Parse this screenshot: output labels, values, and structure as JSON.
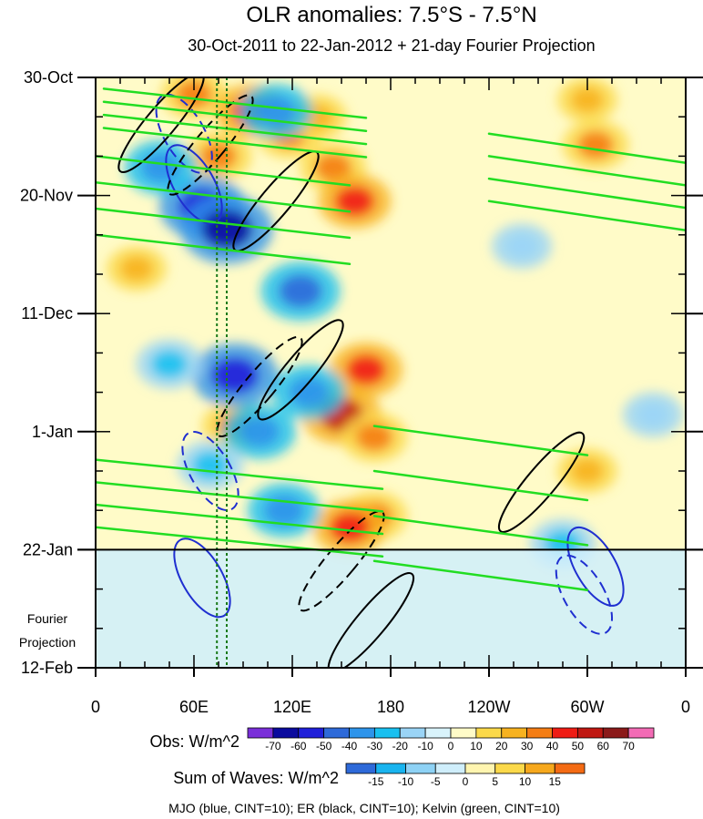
{
  "chart_data": {
    "type": "heatmap",
    "title": "OLR anomalies: 7.5°S - 7.5°N",
    "subtitle": "30-Oct-2011 to 22-Jan-2012 + 21-day Fourier Projection",
    "x_tick_labels": [
      "0",
      "60E",
      "120E",
      "180",
      "120W",
      "60W",
      "0"
    ],
    "x_tick_lon": [
      0,
      60,
      120,
      180,
      240,
      300,
      360
    ],
    "y_tick_labels": [
      "30-Oct",
      "20-Nov",
      "11-Dec",
      "1-Jan",
      "22-Jan",
      "12-Feb"
    ],
    "y_tick_days": [
      0,
      21,
      42,
      63,
      84,
      105
    ],
    "projection_start_day": 84,
    "projection_label": [
      "Fourier",
      "Projection"
    ],
    "vertical_reference_lines_lon": [
      74,
      80
    ],
    "obs_colorbar": {
      "label": "Obs: W/m^2",
      "levels": [
        "-70",
        "-60",
        "-50",
        "-40",
        "-30",
        "-20",
        "-10",
        "0",
        "10",
        "20",
        "30",
        "40",
        "50",
        "60",
        "70"
      ],
      "colors": [
        "#7a2fd9",
        "#0a0a9e",
        "#1f1fd9",
        "#2e6ad9",
        "#2e94ea",
        "#19c0f0",
        "#9ad4f6",
        "#d9f3fb",
        "#fffbc8",
        "#fbd94a",
        "#f7b21f",
        "#f47d14",
        "#ef1c14",
        "#c01812",
        "#8b1a1a",
        "#f26bb5"
      ]
    },
    "waves_colorbar": {
      "label": "Sum of Waves: W/m^2",
      "levels": [
        "-15",
        "-10",
        "-5",
        "0",
        "5",
        "10",
        "15"
      ],
      "colors": [
        "#2e6ad9",
        "#19b4ef",
        "#8ed2f5",
        "#cfeefb",
        "#fff5b0",
        "#fbd94a",
        "#f6a81d",
        "#f46b14"
      ]
    },
    "contour_legend": "MJO (blue, CINT=10); ER (black, CINT=10); Kelvin (green, CINT=10)",
    "series": [
      {
        "name": "Warm (positive) OLR anomaly centers",
        "points": [
          {
            "lon": 60,
            "day": 3,
            "value": 30
          },
          {
            "lon": 95,
            "day": 6,
            "value": 40
          },
          {
            "lon": 75,
            "day": 14,
            "value": 30
          },
          {
            "lon": 118,
            "day": 10,
            "value": 30
          },
          {
            "lon": 135,
            "day": 7,
            "value": 20
          },
          {
            "lon": 145,
            "day": 16,
            "value": 30
          },
          {
            "lon": 158,
            "day": 22,
            "value": 40
          },
          {
            "lon": 300,
            "day": 4,
            "value": 20
          },
          {
            "lon": 305,
            "day": 12,
            "value": 30
          },
          {
            "lon": 165,
            "day": 52,
            "value": 40
          },
          {
            "lon": 150,
            "day": 60,
            "value": 50
          },
          {
            "lon": 170,
            "day": 64,
            "value": 30
          },
          {
            "lon": 85,
            "day": 62,
            "value": 30
          },
          {
            "lon": 25,
            "day": 34,
            "value": 20
          },
          {
            "lon": 170,
            "day": 78,
            "value": 30
          },
          {
            "lon": 300,
            "day": 70,
            "value": 20
          },
          {
            "lon": 155,
            "day": 80,
            "value": 40
          }
        ]
      },
      {
        "name": "Cold (negative) OLR anomaly centers",
        "points": [
          {
            "lon": 65,
            "day": 23,
            "value": -60
          },
          {
            "lon": 80,
            "day": 27,
            "value": -70
          },
          {
            "lon": 40,
            "day": 16,
            "value": -40
          },
          {
            "lon": 110,
            "day": 6,
            "value": -40
          },
          {
            "lon": 125,
            "day": 38,
            "value": -50
          },
          {
            "lon": 85,
            "day": 53,
            "value": -60
          },
          {
            "lon": 100,
            "day": 63,
            "value": -40
          },
          {
            "lon": 130,
            "day": 56,
            "value": -40
          },
          {
            "lon": 70,
            "day": 69,
            "value": -30
          },
          {
            "lon": 45,
            "day": 51,
            "value": -30
          },
          {
            "lon": 115,
            "day": 77,
            "value": -40
          },
          {
            "lon": 260,
            "day": 30,
            "value": -20
          },
          {
            "lon": 340,
            "day": 60,
            "value": -20
          },
          {
            "lon": 285,
            "day": 83,
            "value": -30
          }
        ]
      },
      {
        "name": "MJO contours (blue)",
        "contours": [
          {
            "lon": 60,
            "day": 19,
            "sign": "negative"
          },
          {
            "lon": 54,
            "day": 10,
            "sign": "positive"
          },
          {
            "lon": 70,
            "day": 70,
            "sign": "positive"
          },
          {
            "lon": 65,
            "day": 89,
            "sign": "negative"
          },
          {
            "lon": 298,
            "day": 92,
            "sign": "positive"
          },
          {
            "lon": 305,
            "day": 87,
            "sign": "negative"
          }
        ]
      },
      {
        "name": "ER contours (black)",
        "contours": [
          {
            "lon": 40,
            "day": 8,
            "sign": "positive"
          },
          {
            "lon": 70,
            "day": 12,
            "sign": "negative"
          },
          {
            "lon": 110,
            "day": 22,
            "sign": "positive"
          },
          {
            "lon": 125,
            "day": 52,
            "sign": "positive"
          },
          {
            "lon": 100,
            "day": 55,
            "sign": "negative"
          },
          {
            "lon": 168,
            "day": 97,
            "sign": "positive"
          },
          {
            "lon": 150,
            "day": 86,
            "sign": "negative"
          },
          {
            "lon": 272,
            "day": 72,
            "sign": "positive"
          }
        ]
      },
      {
        "name": "Kelvin contours (green)",
        "bands": [
          {
            "lon_start": 5,
            "lon_end": 165,
            "day_start": 2,
            "day_end": 9
          },
          {
            "lon_start": 0,
            "lon_end": 155,
            "day_start": 14,
            "day_end": 28
          },
          {
            "lon_start": 240,
            "lon_end": 360,
            "day_start": 10,
            "day_end": 22
          },
          {
            "lon_start": 0,
            "lon_end": 175,
            "day_start": 68,
            "day_end": 80
          },
          {
            "lon_start": 170,
            "lon_end": 300,
            "day_start": 62,
            "day_end": 86
          }
        ]
      }
    ]
  }
}
